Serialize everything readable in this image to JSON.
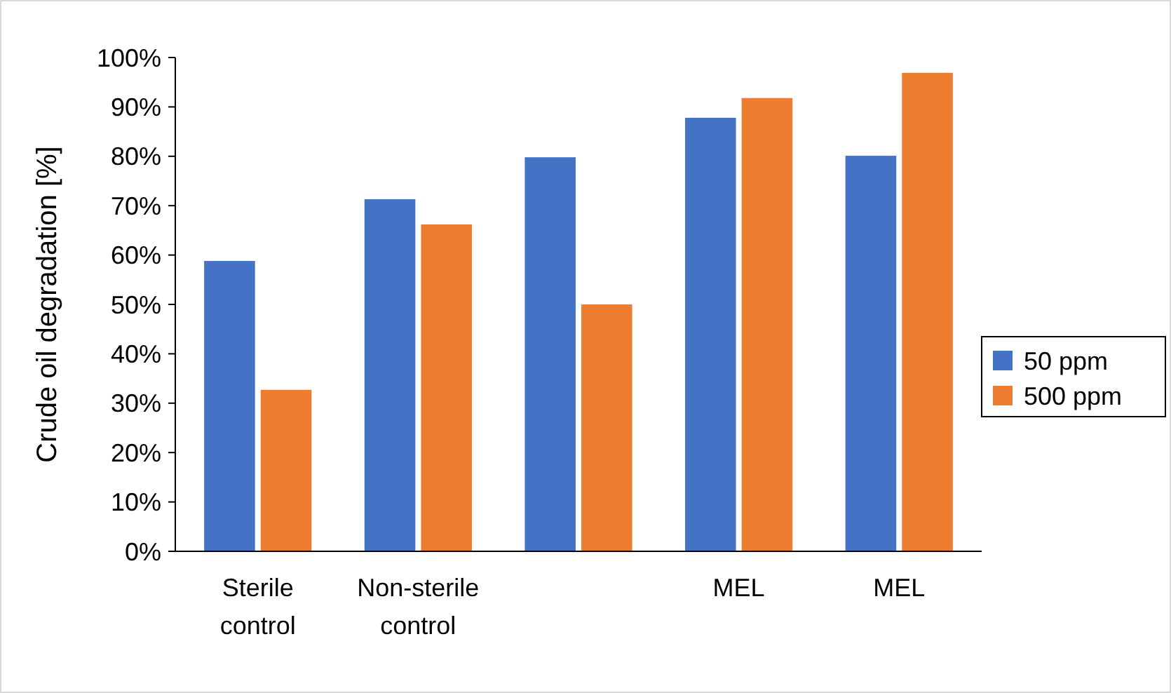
{
  "chart_data": {
    "type": "bar",
    "ylabel": "Crude oil degradation [%]",
    "categories": [
      "Sterile control",
      "Non-sterile control",
      null,
      "MEL",
      "MEL"
    ],
    "series": [
      {
        "name": "50 ppm",
        "color": "#4472c4",
        "values": [
          58.8,
          71.3,
          79.8,
          87.8,
          80.1
        ]
      },
      {
        "name": "500 ppm",
        "color": "#ed7d31",
        "values": [
          32.7,
          66.2,
          50.0,
          91.8,
          96.9
        ]
      }
    ],
    "ylim": [
      0,
      100
    ],
    "yticks": [
      {
        "value": 0,
        "label": "0%"
      },
      {
        "value": 10,
        "label": "10%"
      },
      {
        "value": 20,
        "label": "20%"
      },
      {
        "value": 30,
        "label": "30%"
      },
      {
        "value": 40,
        "label": "40%"
      },
      {
        "value": 50,
        "label": "50%"
      },
      {
        "value": 60,
        "label": "60%"
      },
      {
        "value": 70,
        "label": "70%"
      },
      {
        "value": 80,
        "label": "80%"
      },
      {
        "value": 90,
        "label": "90%"
      },
      {
        "value": 100,
        "label": "100%"
      }
    ],
    "grid": false,
    "legend": "right"
  }
}
